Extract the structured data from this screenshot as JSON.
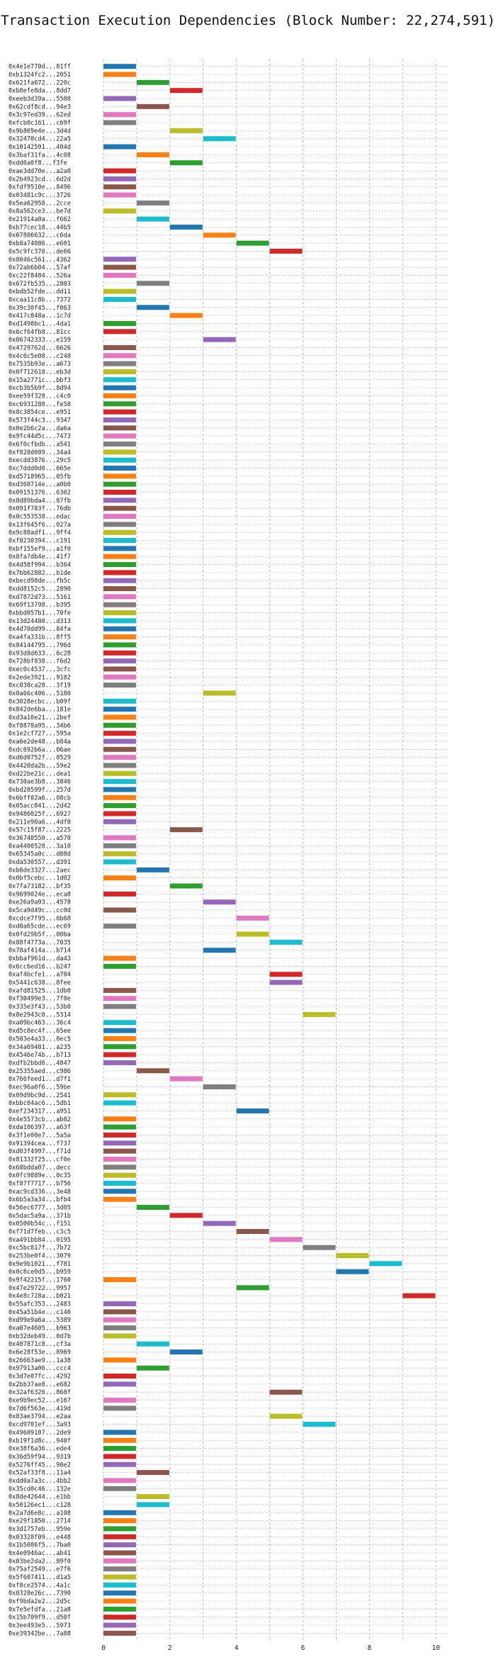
{
  "chart_data": {
    "type": "bar",
    "title": "Transaction Execution Dependencies (Block Number: 22,274,591)",
    "xlabel": "",
    "ylabel": "",
    "xlim": [
      0,
      10.4
    ],
    "xticks": [
      0,
      2,
      4,
      6,
      8,
      10
    ],
    "grid": true,
    "colors": [
      "#1f77b4",
      "#ff7f0e",
      "#2ca02c",
      "#d62728",
      "#9467bd",
      "#8c564b",
      "#e377c2",
      "#7f7f7f",
      "#bcbd22",
      "#17becf"
    ],
    "transactions": [
      {
        "hash": "0x4e1e770d...81ff",
        "start": 0,
        "end": 1
      },
      {
        "hash": "0xb1324fc2...2051",
        "start": 0,
        "end": 1
      },
      {
        "hash": "0x621fa072...220c",
        "start": 1,
        "end": 2
      },
      {
        "hash": "0xb8efe8da...8dd7",
        "start": 2,
        "end": 3
      },
      {
        "hash": "0xeeb3d39a...5508",
        "start": 0,
        "end": 1
      },
      {
        "hash": "0x62cdf8cd...94e3",
        "start": 1,
        "end": 2
      },
      {
        "hash": "0x3c97ed39...62ed",
        "start": 0,
        "end": 1
      },
      {
        "hash": "0xfcb0c161...c69f",
        "start": 0,
        "end": 1
      },
      {
        "hash": "0x9b869e4e...3d4d",
        "start": 2,
        "end": 3
      },
      {
        "hash": "0x32470cd4...22a5",
        "start": 3,
        "end": 4
      },
      {
        "hash": "0x10142591...404d",
        "start": 0,
        "end": 1
      },
      {
        "hash": "0x3baf31fa...4c08",
        "start": 1,
        "end": 2
      },
      {
        "hash": "0xdd6a0f8...f3fe",
        "start": 2,
        "end": 3
      },
      {
        "hash": "0xae3dd70e...a2a0",
        "start": 0,
        "end": 1
      },
      {
        "hash": "0x2b4923cd...6d2d",
        "start": 0,
        "end": 1
      },
      {
        "hash": "0xfdf9510e...8496",
        "start": 0,
        "end": 1
      },
      {
        "hash": "0x03481c9c...3726",
        "start": 0,
        "end": 1
      },
      {
        "hash": "0x5ea62958...2cce",
        "start": 1,
        "end": 2
      },
      {
        "hash": "0x8a562ce3...be7d",
        "start": 0,
        "end": 1
      },
      {
        "hash": "0x21914a0a...f662",
        "start": 1,
        "end": 2
      },
      {
        "hash": "0xb77cec18...44b5",
        "start": 2,
        "end": 3
      },
      {
        "hash": "0x67806632...c6da",
        "start": 3,
        "end": 4
      },
      {
        "hash": "0xb8a74086...e601",
        "start": 4,
        "end": 5
      },
      {
        "hash": "0x5c9fc370...de66",
        "start": 5,
        "end": 6
      },
      {
        "hash": "0x8046c561...4362",
        "start": 0,
        "end": 1
      },
      {
        "hash": "0x72ab6b04...57af",
        "start": 0,
        "end": 1
      },
      {
        "hash": "0xc22f8484...526a",
        "start": 0,
        "end": 1
      },
      {
        "hash": "0x672fb535...2803",
        "start": 1,
        "end": 2
      },
      {
        "hash": "0xbdb52fde...dd11",
        "start": 0,
        "end": 1
      },
      {
        "hash": "0xcaa11c8b...7372",
        "start": 0,
        "end": 1
      },
      {
        "hash": "0x39c30f45...f063",
        "start": 1,
        "end": 2
      },
      {
        "hash": "0x417c848a...1c7d",
        "start": 2,
        "end": 3
      },
      {
        "hash": "0xd1498bc1...4da1",
        "start": 0,
        "end": 1
      },
      {
        "hash": "0x6cf64fb8...81cc",
        "start": 0,
        "end": 1
      },
      {
        "hash": "0x86742333...e159",
        "start": 3,
        "end": 4
      },
      {
        "hash": "0x4729762d...6626",
        "start": 0,
        "end": 1
      },
      {
        "hash": "0x4c6c5e08...c248",
        "start": 0,
        "end": 1
      },
      {
        "hash": "0x7535b93e...a673",
        "start": 0,
        "end": 1
      },
      {
        "hash": "0x0f712618...eb3d",
        "start": 0,
        "end": 1
      },
      {
        "hash": "0x15a2771c...bbf3",
        "start": 0,
        "end": 1
      },
      {
        "hash": "0xcb3b5b9f...8d94",
        "start": 0,
        "end": 1
      },
      {
        "hash": "0xee59f328...c4c0",
        "start": 0,
        "end": 1
      },
      {
        "hash": "0xc6931288...fe58",
        "start": 0,
        "end": 1
      },
      {
        "hash": "0x8c3854ce...e951",
        "start": 0,
        "end": 1
      },
      {
        "hash": "0x573f44c3...9347",
        "start": 0,
        "end": 1
      },
      {
        "hash": "0x0e2b6c2a...da6a",
        "start": 0,
        "end": 1
      },
      {
        "hash": "0x9fc44d5c...7473",
        "start": 0,
        "end": 1
      },
      {
        "hash": "0x6f0cfbdb...a541",
        "start": 0,
        "end": 1
      },
      {
        "hash": "0xf828d089...34a4",
        "start": 0,
        "end": 1
      },
      {
        "hash": "0xecdd3876...29c5",
        "start": 0,
        "end": 1
      },
      {
        "hash": "0xc7ddd0d0...665e",
        "start": 0,
        "end": 1
      },
      {
        "hash": "0xd5718965...05fb",
        "start": 0,
        "end": 1
      },
      {
        "hash": "0xd368714e...a0b0",
        "start": 0,
        "end": 1
      },
      {
        "hash": "0x09151376...6302",
        "start": 0,
        "end": 1
      },
      {
        "hash": "0x8d89bda4...87fb",
        "start": 0,
        "end": 1
      },
      {
        "hash": "0x091f783f...76db",
        "start": 0,
        "end": 1
      },
      {
        "hash": "0x0c553538...edac",
        "start": 0,
        "end": 1
      },
      {
        "hash": "0x13f645f6...027a",
        "start": 0,
        "end": 1
      },
      {
        "hash": "0x9c88adf1...9ff4",
        "start": 0,
        "end": 1
      },
      {
        "hash": "0xf0230394...c191",
        "start": 0,
        "end": 1
      },
      {
        "hash": "0xbf155ef9...a1f0",
        "start": 0,
        "end": 1
      },
      {
        "hash": "0x8fa7db4e...41f7",
        "start": 0,
        "end": 1
      },
      {
        "hash": "0x4d58f994...b364",
        "start": 0,
        "end": 1
      },
      {
        "hash": "0x7bb62882...b1de",
        "start": 0,
        "end": 1
      },
      {
        "hash": "0xbecd98de...fb5c",
        "start": 0,
        "end": 1
      },
      {
        "hash": "0xdd8152c5...2890",
        "start": 0,
        "end": 1
      },
      {
        "hash": "0xd7872d73...5161",
        "start": 0,
        "end": 1
      },
      {
        "hash": "0x69f13798...b395",
        "start": 0,
        "end": 1
      },
      {
        "hash": "0xbbd057b1...70fe",
        "start": 0,
        "end": 1
      },
      {
        "hash": "0x13d24480...d313",
        "start": 0,
        "end": 1
      },
      {
        "hash": "0x4d70dd99...84fa",
        "start": 0,
        "end": 1
      },
      {
        "hash": "0xa4fa331b...8ff5",
        "start": 0,
        "end": 1
      },
      {
        "hash": "0x84144795...796d",
        "start": 0,
        "end": 1
      },
      {
        "hash": "0x93d8d633...6c28",
        "start": 0,
        "end": 1
      },
      {
        "hash": "0x728bf838...f6d2",
        "start": 0,
        "end": 1
      },
      {
        "hash": "0xec0c4537...3cfc",
        "start": 0,
        "end": 1
      },
      {
        "hash": "0x2ede3921...9182",
        "start": 0,
        "end": 1
      },
      {
        "hash": "0xc038ca28...3f19",
        "start": 0,
        "end": 1
      },
      {
        "hash": "0x0a66c406...5180",
        "start": 3,
        "end": 4
      },
      {
        "hash": "0x3028ecbc...b09f",
        "start": 0,
        "end": 1
      },
      {
        "hash": "0x842de6ba...181e",
        "start": 0,
        "end": 1
      },
      {
        "hash": "0xd3a10e21...2bef",
        "start": 0,
        "end": 1
      },
      {
        "hash": "0xf8878a95...34b6",
        "start": 0,
        "end": 1
      },
      {
        "hash": "0x1e2cf727...595a",
        "start": 0,
        "end": 1
      },
      {
        "hash": "0xa6e2de48...b84a",
        "start": 0,
        "end": 1
      },
      {
        "hash": "0xdc692b6a...06ae",
        "start": 0,
        "end": 1
      },
      {
        "hash": "0xd6d0752f...8529",
        "start": 0,
        "end": 1
      },
      {
        "hash": "0x4420da2b...59e2",
        "start": 0,
        "end": 1
      },
      {
        "hash": "0xd22be21c...dea1",
        "start": 0,
        "end": 1
      },
      {
        "hash": "0x730ae3b8...3846",
        "start": 0,
        "end": 1
      },
      {
        "hash": "0xbd28599f...257d",
        "start": 0,
        "end": 1
      },
      {
        "hash": "0x6bff02a6...08cb",
        "start": 0,
        "end": 1
      },
      {
        "hash": "0x05acc041...2d42",
        "start": 0,
        "end": 1
      },
      {
        "hash": "0x9486025f...6927",
        "start": 0,
        "end": 1
      },
      {
        "hash": "0x211e90a6...4df0",
        "start": 0,
        "end": 1
      },
      {
        "hash": "0x57c15f87...2225",
        "start": 2,
        "end": 3
      },
      {
        "hash": "0x36748550...a570",
        "start": 0,
        "end": 1
      },
      {
        "hash": "0xa4400528...3a10",
        "start": 0,
        "end": 1
      },
      {
        "hash": "0x65345a0c...d88d",
        "start": 0,
        "end": 1
      },
      {
        "hash": "0xda530557...d391",
        "start": 0,
        "end": 1
      },
      {
        "hash": "0xb6de3327...2aec",
        "start": 1,
        "end": 2
      },
      {
        "hash": "0x0bf5cebc...1d02",
        "start": 0,
        "end": 1
      },
      {
        "hash": "0x7fa73182...bf35",
        "start": 2,
        "end": 3
      },
      {
        "hash": "0x9699024e...eca8",
        "start": 0,
        "end": 1
      },
      {
        "hash": "0xe26a9a93...4578",
        "start": 3,
        "end": 4
      },
      {
        "hash": "0x5ca9d49c...cc0d",
        "start": 0,
        "end": 1
      },
      {
        "hash": "0xcdce7f95...6b68",
        "start": 4,
        "end": 5
      },
      {
        "hash": "0xd0a65cde...ec69",
        "start": 0,
        "end": 1
      },
      {
        "hash": "0x0fd29b5f...00ba",
        "start": 4,
        "end": 5
      },
      {
        "hash": "0x88f4773a...7035",
        "start": 5,
        "end": 6
      },
      {
        "hash": "0x78af414a...b714",
        "start": 3,
        "end": 4
      },
      {
        "hash": "0xbbaf961d...da43",
        "start": 0,
        "end": 1
      },
      {
        "hash": "0x6cc6ed16...b247",
        "start": 0,
        "end": 1
      },
      {
        "hash": "0xaf4bcfe1...a704",
        "start": 5,
        "end": 6
      },
      {
        "hash": "0x5441c638...8fee",
        "start": 5,
        "end": 6
      },
      {
        "hash": "0xafd81525...1db0",
        "start": 0,
        "end": 1
      },
      {
        "hash": "0xf30499e3...7f0e",
        "start": 0,
        "end": 1
      },
      {
        "hash": "0x335e3f43...53b8",
        "start": 0,
        "end": 1
      },
      {
        "hash": "0x8e2943c0...5314",
        "start": 6,
        "end": 7
      },
      {
        "hash": "0xa09bc463...36c4",
        "start": 0,
        "end": 1
      },
      {
        "hash": "0xd5c8ec4f...65ee",
        "start": 0,
        "end": 1
      },
      {
        "hash": "0x503e4a33...0ec5",
        "start": 0,
        "end": 1
      },
      {
        "hash": "0x34a69481...a235",
        "start": 0,
        "end": 1
      },
      {
        "hash": "0x4546e74b...b713",
        "start": 0,
        "end": 1
      },
      {
        "hash": "0xdfb2bbd6...4847",
        "start": 0,
        "end": 1
      },
      {
        "hash": "0x25355aed...c986",
        "start": 1,
        "end": 2
      },
      {
        "hash": "0x766feed1...d7f1",
        "start": 2,
        "end": 3
      },
      {
        "hash": "0xec96a0f6...59be",
        "start": 3,
        "end": 4
      },
      {
        "hash": "0x09d9bc9d...2541",
        "start": 0,
        "end": 1
      },
      {
        "hash": "0xbbc04ac6...5db1",
        "start": 0,
        "end": 1
      },
      {
        "hash": "0xef234317...a951",
        "start": 4,
        "end": 5
      },
      {
        "hash": "0x4e5573cb...ab82",
        "start": 0,
        "end": 1
      },
      {
        "hash": "0xda106397...a63f",
        "start": 0,
        "end": 1
      },
      {
        "hash": "0x3f1e00e7...5a5a",
        "start": 0,
        "end": 1
      },
      {
        "hash": "0x91394cea...f737",
        "start": 0,
        "end": 1
      },
      {
        "hash": "0xd03f4997...f71d",
        "start": 0,
        "end": 1
      },
      {
        "hash": "0x81332f25...cf0e",
        "start": 0,
        "end": 1
      },
      {
        "hash": "0x68bdda07...decc",
        "start": 0,
        "end": 1
      },
      {
        "hash": "0x0fc9889e...0c35",
        "start": 0,
        "end": 1
      },
      {
        "hash": "0xf87f7717...b756",
        "start": 0,
        "end": 1
      },
      {
        "hash": "0xac9cd336...3e48",
        "start": 0,
        "end": 1
      },
      {
        "hash": "0x6b5a3a34...bfb4",
        "start": 0,
        "end": 1
      },
      {
        "hash": "0x56ec6777...3d05",
        "start": 1,
        "end": 2
      },
      {
        "hash": "0x5dac5a9a...371b",
        "start": 2,
        "end": 3
      },
      {
        "hash": "0x0500b54c...f151",
        "start": 3,
        "end": 4
      },
      {
        "hash": "0xf71d7feb...c3c5",
        "start": 4,
        "end": 5
      },
      {
        "hash": "0xa491bb84...0195",
        "start": 5,
        "end": 6
      },
      {
        "hash": "0xc5bc817f...7b72",
        "start": 6,
        "end": 7
      },
      {
        "hash": "0x253be0f4...3079",
        "start": 7,
        "end": 8
      },
      {
        "hash": "0x9e9b1021...f781",
        "start": 8,
        "end": 9
      },
      {
        "hash": "0x0c8ce0d5...b959",
        "start": 7,
        "end": 8
      },
      {
        "hash": "0x9f42215f...1760",
        "start": 0,
        "end": 1
      },
      {
        "hash": "0x47e29722...9957",
        "start": 4,
        "end": 5
      },
      {
        "hash": "0x4e8c728a...b021",
        "start": 9,
        "end": 10
      },
      {
        "hash": "0x55afc353...2483",
        "start": 0,
        "end": 1
      },
      {
        "hash": "0x45a51b4e...c140",
        "start": 0,
        "end": 1
      },
      {
        "hash": "0xd99e9a6a...5389",
        "start": 0,
        "end": 1
      },
      {
        "hash": "0xa07e4605...b963",
        "start": 0,
        "end": 1
      },
      {
        "hash": "0xb32deb49...0d7b",
        "start": 0,
        "end": 1
      },
      {
        "hash": "0x407871c8...cf3a",
        "start": 1,
        "end": 2
      },
      {
        "hash": "0x6e28f53e...8969",
        "start": 2,
        "end": 3
      },
      {
        "hash": "0x26663ae9...1a38",
        "start": 0,
        "end": 1
      },
      {
        "hash": "0x97913a06...ccc4",
        "start": 1,
        "end": 2
      },
      {
        "hash": "0x3d7e07fc...4292",
        "start": 0,
        "end": 1
      },
      {
        "hash": "0x2bb37ae8...e682",
        "start": 0,
        "end": 1
      },
      {
        "hash": "0x32af6326...868f",
        "start": 5,
        "end": 6
      },
      {
        "hash": "0xe9b9ec52...e167",
        "start": 0,
        "end": 1
      },
      {
        "hash": "0x7d6f563e...419d",
        "start": 0,
        "end": 1
      },
      {
        "hash": "0x83ae3794...e2aa",
        "start": 5,
        "end": 6
      },
      {
        "hash": "0xcd9701ef...3a93",
        "start": 6,
        "end": 7
      },
      {
        "hash": "0x49609107...2de9",
        "start": 0,
        "end": 1
      },
      {
        "hash": "0xb19f1d8c...940f",
        "start": 0,
        "end": 1
      },
      {
        "hash": "0xe38f6a36...ede4",
        "start": 0,
        "end": 1
      },
      {
        "hash": "0x36d59f94...9319",
        "start": 0,
        "end": 1
      },
      {
        "hash": "0x5276ff45...90e2",
        "start": 0,
        "end": 1
      },
      {
        "hash": "0x52af33f8...11a4",
        "start": 1,
        "end": 2
      },
      {
        "hash": "0xdd0a7a3c...4bb2",
        "start": 0,
        "end": 1
      },
      {
        "hash": "0x35cd0c46...132e",
        "start": 0,
        "end": 1
      },
      {
        "hash": "0x8de42644...e1bb",
        "start": 1,
        "end": 2
      },
      {
        "hash": "0x50126ec1...c128",
        "start": 1,
        "end": 2
      },
      {
        "hash": "0x2a7d6e8c...a108",
        "start": 0,
        "end": 1
      },
      {
        "hash": "0xe29f1850...2714",
        "start": 0,
        "end": 1
      },
      {
        "hash": "0x3d1757eb...959e",
        "start": 0,
        "end": 1
      },
      {
        "hash": "0x03328f09...e448",
        "start": 0,
        "end": 1
      },
      {
        "hash": "0x1b5086f5...7ba0",
        "start": 0,
        "end": 1
      },
      {
        "hash": "0x4e0946ac...ab41",
        "start": 0,
        "end": 1
      },
      {
        "hash": "0x03be2da2...89f0",
        "start": 0,
        "end": 1
      },
      {
        "hash": "0x75af2549...e7f6",
        "start": 0,
        "end": 1
      },
      {
        "hash": "0x5f607411...d1a5",
        "start": 0,
        "end": 1
      },
      {
        "hash": "0xf8ce2574...4a1c",
        "start": 0,
        "end": 1
      },
      {
        "hash": "0x0328e26c...7390",
        "start": 0,
        "end": 1
      },
      {
        "hash": "0xf9bda2e2...2d5c",
        "start": 0,
        "end": 1
      },
      {
        "hash": "0x7e5efdfa...21a8",
        "start": 0,
        "end": 1
      },
      {
        "hash": "0x15b709f9...d50f",
        "start": 0,
        "end": 1
      },
      {
        "hash": "0x3ee493e5...5973",
        "start": 0,
        "end": 1
      },
      {
        "hash": "0xe39342be...7a88",
        "start": 0,
        "end": 1
      }
    ]
  }
}
